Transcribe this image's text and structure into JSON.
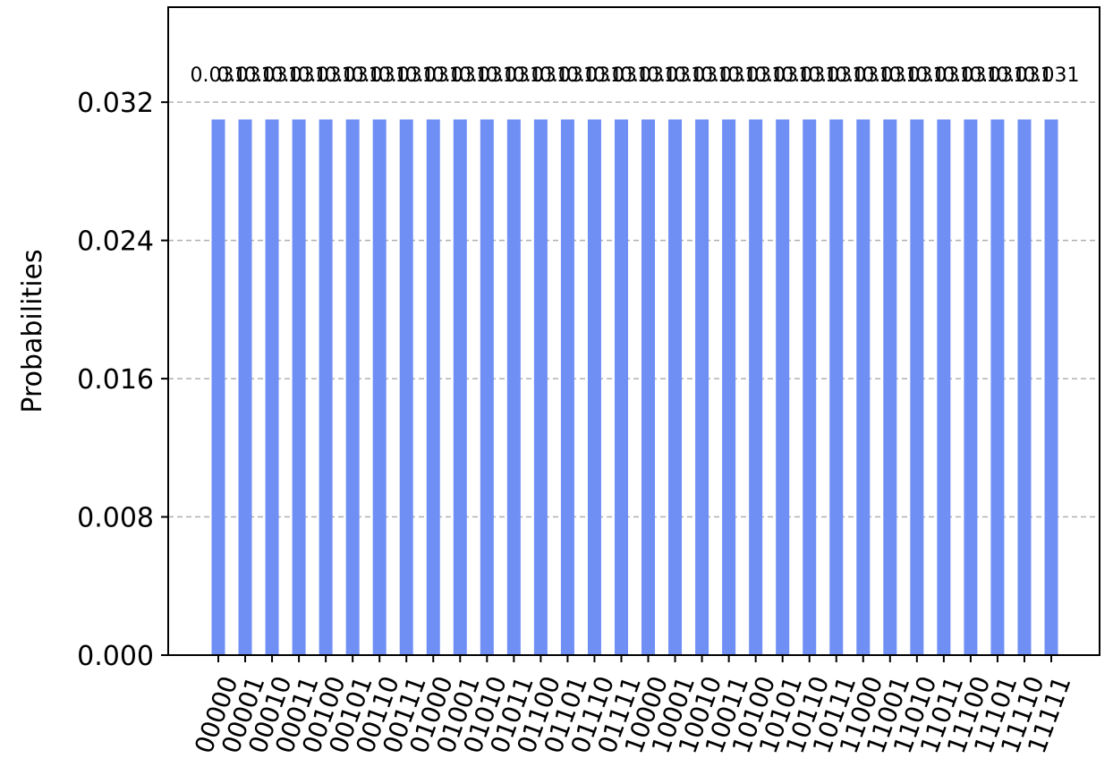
{
  "chart_data": {
    "type": "bar",
    "ylabel": "Probabilities",
    "xlabel": "",
    "ylim": [
      0,
      0.0375
    ],
    "yticks": [
      "0.000",
      "0.008",
      "0.016",
      "0.024",
      "0.032"
    ],
    "ytick_values": [
      0,
      0.008,
      0.016,
      0.024,
      0.032
    ],
    "grid": "horizontal dashed",
    "bar_color": "#6f8ff5",
    "categories": [
      "00000",
      "00001",
      "00010",
      "00011",
      "00100",
      "00101",
      "00110",
      "00111",
      "01000",
      "01001",
      "01010",
      "01011",
      "01100",
      "01101",
      "01110",
      "01111",
      "10000",
      "10001",
      "10010",
      "10011",
      "10100",
      "10101",
      "10110",
      "10111",
      "11000",
      "11001",
      "11010",
      "11011",
      "11100",
      "11101",
      "11110",
      "11111"
    ],
    "values": [
      0.031,
      0.031,
      0.031,
      0.031,
      0.031,
      0.031,
      0.031,
      0.031,
      0.031,
      0.031,
      0.031,
      0.031,
      0.031,
      0.031,
      0.031,
      0.031,
      0.031,
      0.031,
      0.031,
      0.031,
      0.031,
      0.031,
      0.031,
      0.031,
      0.031,
      0.031,
      0.031,
      0.031,
      0.031,
      0.031,
      0.031,
      0.031
    ],
    "bar_labels": [
      "0.031",
      "0.031",
      "0.031",
      "0.031",
      "0.031",
      "0.031",
      "0.031",
      "0.031",
      "0.031",
      "0.031",
      "0.031",
      "0.031",
      "0.031",
      "0.031",
      "0.031",
      "0.031",
      "0.031",
      "0.031",
      "0.031",
      "0.031",
      "0.031",
      "0.031",
      "0.031",
      "0.031",
      "0.031",
      "0.031",
      "0.031",
      "0.031",
      "0.031",
      "0.031",
      "0.031",
      "0.031"
    ]
  }
}
